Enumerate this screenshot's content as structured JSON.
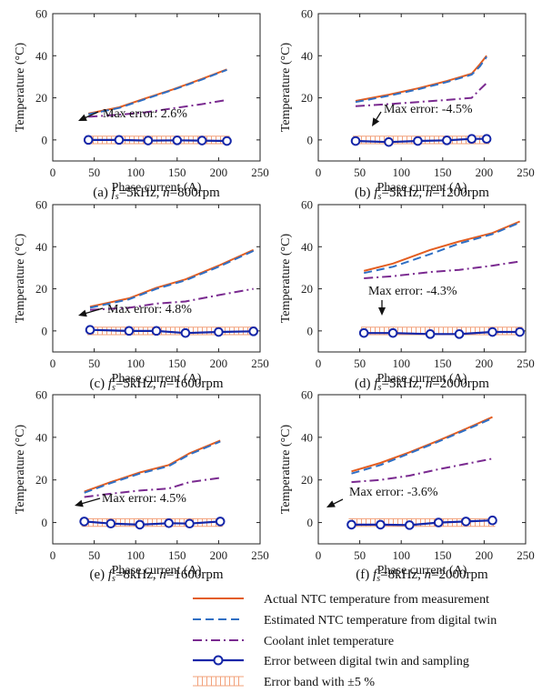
{
  "colors": {
    "actual": "#e35d20",
    "estimated": "#2f6fc4",
    "coolant": "#7a2a90",
    "error": "#1426a8",
    "band": "#f2a07a"
  },
  "legend": [
    {
      "key": "actual",
      "label": "Actual NTC temperature from measurement",
      "style": "solid"
    },
    {
      "key": "estimated",
      "label": "Estimated NTC temperature from digital twin",
      "style": "dash"
    },
    {
      "key": "coolant",
      "label": "Coolant inlet temperature",
      "style": "dashdot"
    },
    {
      "key": "error",
      "label": "Error between digital twin and sampling",
      "style": "circle"
    },
    {
      "key": "band",
      "label": "Error band with ±5 %",
      "style": "band"
    }
  ],
  "chart_data": [
    {
      "type": "line",
      "caption_prefix": "(a) ",
      "fs_value": "=5kHz, ",
      "n_value": "=800rpm",
      "xlabel": "Phase current (A)",
      "ylabel": "Temperature (°C)",
      "xlim": [
        0,
        250
      ],
      "ylim": [
        -10,
        60
      ],
      "xticks": [
        "0",
        "50",
        "100",
        "150",
        "200",
        "250"
      ],
      "yticks": [
        "0",
        "20",
        "40",
        "60"
      ],
      "grid": false,
      "annotation": "Max error: 2.6%",
      "series": [
        {
          "key": "actual",
          "x": [
            43,
            80,
            110,
            145,
            180,
            210
          ],
          "y": [
            12.5,
            15.5,
            19.5,
            24,
            29,
            33.5
          ]
        },
        {
          "key": "estimated",
          "x": [
            43,
            80,
            110,
            145,
            180,
            210
          ],
          "y": [
            12.2,
            15.2,
            19.2,
            23.8,
            28.7,
            33.3
          ]
        },
        {
          "key": "coolant",
          "x": [
            43,
            80,
            110,
            145,
            180,
            210
          ],
          "y": [
            11,
            12,
            13,
            15,
            17,
            19
          ]
        },
        {
          "key": "error",
          "x": [
            43,
            80,
            115,
            150,
            180,
            210
          ],
          "y": [
            0,
            0,
            -0.3,
            -0.2,
            -0.3,
            -0.5
          ]
        }
      ]
    },
    {
      "type": "line",
      "caption_prefix": "(b) ",
      "fs_value": "=5kHz, ",
      "n_value": "=1200rpm",
      "xlabel": "Phase current (A)",
      "ylabel": "Temperature (°C)",
      "xlim": [
        0,
        250
      ],
      "ylim": [
        -10,
        60
      ],
      "xticks": [
        "0",
        "50",
        "100",
        "150",
        "200",
        "250"
      ],
      "yticks": [
        "0",
        "20",
        "40",
        "60"
      ],
      "grid": false,
      "annotation": "Max error: -4.5%",
      "series": [
        {
          "key": "actual",
          "x": [
            45,
            85,
            120,
            155,
            185,
            195,
            203
          ],
          "y": [
            18.5,
            21.5,
            24.5,
            28,
            31.5,
            36,
            40
          ]
        },
        {
          "key": "estimated",
          "x": [
            45,
            85,
            120,
            155,
            185,
            195,
            203
          ],
          "y": [
            18,
            21,
            24,
            27.5,
            31,
            35,
            39.5
          ]
        },
        {
          "key": "coolant",
          "x": [
            45,
            85,
            120,
            155,
            185,
            195,
            203
          ],
          "y": [
            16,
            17,
            18,
            19,
            20,
            24,
            27
          ]
        },
        {
          "key": "error",
          "x": [
            45,
            85,
            120,
            155,
            185,
            203
          ],
          "y": [
            -0.5,
            -1,
            -0.5,
            -0.2,
            0.5,
            0.5
          ]
        }
      ]
    },
    {
      "type": "line",
      "caption_prefix": "(c) ",
      "fs_value": "=5kHz, ",
      "n_value": "=1600rpm",
      "xlabel": "Phase current (A)",
      "ylabel": "Temperature (°C)",
      "xlim": [
        0,
        250
      ],
      "ylim": [
        -10,
        60
      ],
      "xticks": [
        "0",
        "50",
        "100",
        "150",
        "200",
        "250"
      ],
      "yticks": [
        "0",
        "20",
        "40",
        "60"
      ],
      "grid": false,
      "annotation": "Max error: 4.8%",
      "series": [
        {
          "key": "actual",
          "x": [
            45,
            92,
            125,
            160,
            200,
            242
          ],
          "y": [
            11.5,
            15.5,
            20.5,
            24.5,
            31,
            38.5
          ]
        },
        {
          "key": "estimated",
          "x": [
            45,
            92,
            125,
            160,
            200,
            242
          ],
          "y": [
            11,
            15,
            20,
            24,
            30.5,
            38
          ]
        },
        {
          "key": "coolant",
          "x": [
            45,
            92,
            125,
            160,
            200,
            242
          ],
          "y": [
            10,
            11,
            13,
            14,
            17,
            20
          ]
        },
        {
          "key": "error",
          "x": [
            45,
            92,
            125,
            160,
            200,
            242
          ],
          "y": [
            0.5,
            0,
            0,
            -1,
            -0.5,
            -0.2
          ]
        }
      ]
    },
    {
      "type": "line",
      "caption_prefix": "(d) ",
      "fs_value": "=5kHz, ",
      "n_value": "=2000rpm",
      "xlabel": "Phase current (A)",
      "ylabel": "Temperature (°C)",
      "xlim": [
        0,
        250
      ],
      "ylim": [
        -10,
        60
      ],
      "xticks": [
        "0",
        "50",
        "100",
        "150",
        "200",
        "250"
      ],
      "yticks": [
        "0",
        "20",
        "40",
        "60"
      ],
      "grid": false,
      "annotation": "Max error: -4.3%",
      "series": [
        {
          "key": "actual",
          "x": [
            55,
            90,
            135,
            170,
            210,
            243
          ],
          "y": [
            28.5,
            32,
            38.5,
            42.5,
            46.5,
            52
          ]
        },
        {
          "key": "estimated",
          "x": [
            55,
            90,
            135,
            170,
            210,
            243
          ],
          "y": [
            27.5,
            30.5,
            36.5,
            41.5,
            46,
            51.5
          ]
        },
        {
          "key": "coolant",
          "x": [
            55,
            90,
            135,
            170,
            210,
            243
          ],
          "y": [
            25,
            26,
            28,
            29,
            31,
            33
          ]
        },
        {
          "key": "error",
          "x": [
            55,
            90,
            135,
            170,
            210,
            243
          ],
          "y": [
            -1,
            -1,
            -1.5,
            -1.5,
            -0.5,
            -0.5
          ]
        }
      ]
    },
    {
      "type": "line",
      "caption_prefix": "(e) ",
      "fs_value": "=8kHz, ",
      "n_value": "=1600rpm",
      "xlabel": "Phase current (A)",
      "ylabel": "Temperature (°C)",
      "xlim": [
        0,
        250
      ],
      "ylim": [
        -10,
        60
      ],
      "xticks": [
        "0",
        "50",
        "100",
        "150",
        "200",
        "250"
      ],
      "yticks": [
        "0",
        "20",
        "40",
        "60"
      ],
      "grid": false,
      "annotation": "Max error: 4.5%",
      "series": [
        {
          "key": "actual",
          "x": [
            38,
            70,
            105,
            140,
            165,
            202
          ],
          "y": [
            14.5,
            19,
            23.5,
            27,
            32.5,
            38.5
          ]
        },
        {
          "key": "estimated",
          "x": [
            38,
            70,
            105,
            140,
            165,
            202
          ],
          "y": [
            14,
            18.5,
            23,
            26.5,
            32,
            38
          ]
        },
        {
          "key": "coolant",
          "x": [
            38,
            70,
            105,
            140,
            165,
            202
          ],
          "y": [
            12,
            13.5,
            15,
            16,
            19,
            21
          ]
        },
        {
          "key": "error",
          "x": [
            38,
            70,
            105,
            140,
            165,
            202
          ],
          "y": [
            0.5,
            -0.5,
            -1,
            -0.3,
            -0.5,
            0.5
          ]
        }
      ]
    },
    {
      "type": "line",
      "caption_prefix": "(f) ",
      "fs_value": "=8kHz, ",
      "n_value": "=2000rpm",
      "xlabel": "Phase current (A)",
      "ylabel": "Temperature (°C)",
      "xlim": [
        0,
        250
      ],
      "ylim": [
        -10,
        60
      ],
      "xticks": [
        "0",
        "50",
        "100",
        "150",
        "200",
        "250"
      ],
      "yticks": [
        "0",
        "20",
        "40",
        "60"
      ],
      "grid": false,
      "annotation": "Max error: -3.6%",
      "series": [
        {
          "key": "actual",
          "x": [
            40,
            75,
            110,
            145,
            178,
            210
          ],
          "y": [
            24,
            28,
            33,
            38.5,
            44,
            49.5
          ]
        },
        {
          "key": "estimated",
          "x": [
            40,
            75,
            110,
            145,
            178,
            210
          ],
          "y": [
            23,
            27,
            32.5,
            38,
            43.5,
            49
          ]
        },
        {
          "key": "coolant",
          "x": [
            40,
            75,
            110,
            145,
            178,
            210
          ],
          "y": [
            19,
            20,
            22,
            25,
            27.5,
            30
          ]
        },
        {
          "key": "error",
          "x": [
            40,
            75,
            110,
            145,
            178,
            210
          ],
          "y": [
            -1,
            -1,
            -1.2,
            0,
            0.5,
            1
          ]
        }
      ]
    }
  ]
}
